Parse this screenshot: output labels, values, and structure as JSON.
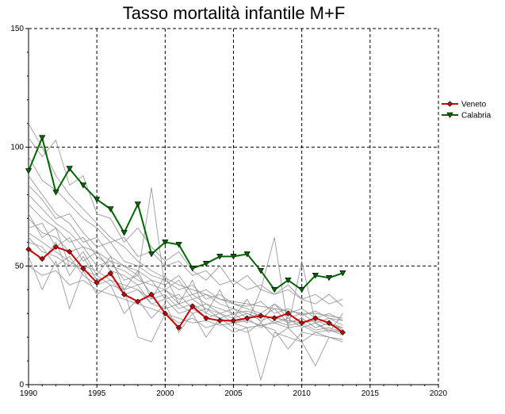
{
  "chart_data": {
    "type": "line",
    "title": "Tasso mortalità infantile M+F",
    "xlabel": "",
    "ylabel": "",
    "xlim": [
      1990,
      2020
    ],
    "ylim": [
      0,
      150
    ],
    "x_ticks": [
      "1990",
      "1995",
      "2000",
      "2005",
      "2010",
      "2015",
      "2020"
    ],
    "y_ticks": [
      "0",
      "50",
      "100",
      "150"
    ],
    "grid": "dashed",
    "legend_position": "right",
    "series": [
      {
        "name": "Veneto",
        "color": "#cc0000",
        "marker": "diamond",
        "x": [
          1990,
          1991,
          1992,
          1993,
          1994,
          1995,
          1996,
          1997,
          1998,
          1999,
          2000,
          2001,
          2002,
          2003,
          2004,
          2005,
          2006,
          2007,
          2008,
          2009,
          2010,
          2011,
          2012,
          2013
        ],
        "values": [
          57,
          53,
          58,
          56,
          49,
          43,
          47,
          38,
          35,
          38,
          30,
          24,
          33,
          28,
          27,
          27,
          28,
          29,
          28,
          30,
          26,
          28,
          26,
          22
        ]
      },
      {
        "name": "Calabria",
        "color": "#006600",
        "marker": "triangle-down",
        "x": [
          1990,
          1991,
          1992,
          1993,
          1994,
          1995,
          1996,
          1997,
          1998,
          1999,
          2000,
          2001,
          2002,
          2003,
          2004,
          2005,
          2006,
          2007,
          2008,
          2009,
          2010,
          2011,
          2012,
          2013
        ],
        "values": [
          90,
          104,
          81,
          91,
          84,
          78,
          74,
          64,
          76,
          55,
          60,
          59,
          49,
          51,
          54,
          54,
          55,
          48,
          40,
          44,
          40,
          46,
          45,
          47
        ]
      }
    ],
    "background_series_color": "#909090",
    "background_series": [
      {
        "x": [
          1990,
          1991,
          1992,
          1993,
          1994,
          1995,
          1996,
          1997,
          1998,
          1999,
          2000,
          2001,
          2002,
          2003,
          2004,
          2005,
          2006,
          2007,
          2008,
          2009,
          2010,
          2011,
          2012,
          2013
        ],
        "values": [
          110,
          100,
          88,
          80,
          74,
          68,
          62,
          58,
          52,
          48,
          45,
          42,
          40,
          38,
          36,
          35,
          34,
          33,
          32,
          31,
          30,
          30,
          29,
          28
        ]
      },
      {
        "x": [
          1990,
          1991,
          1992,
          1993,
          1994,
          1995,
          1996,
          1997,
          1998,
          1999,
          2000,
          2001,
          2002,
          2003,
          2004,
          2005,
          2006,
          2007,
          2008,
          2009,
          2010,
          2011,
          2012,
          2013
        ],
        "values": [
          104,
          96,
          103,
          84,
          88,
          72,
          70,
          60,
          66,
          58,
          52,
          56,
          48,
          44,
          50,
          42,
          46,
          40,
          38,
          42,
          36,
          34,
          38,
          33
        ]
      },
      {
        "x": [
          1990,
          1991,
          1992,
          1993,
          1994,
          1995,
          1996,
          1997,
          1998,
          1999,
          2000,
          2001,
          2002,
          2003,
          2004,
          2005,
          2006,
          2007,
          2008,
          2009,
          2010,
          2011,
          2012,
          2013
        ],
        "values": [
          84,
          78,
          70,
          72,
          64,
          58,
          60,
          52,
          50,
          46,
          44,
          40,
          42,
          36,
          38,
          34,
          33,
          35,
          30,
          32,
          29,
          31,
          28,
          27
        ]
      },
      {
        "x": [
          1990,
          1991,
          1992,
          1993,
          1994,
          1995,
          1996,
          1997,
          1998,
          1999,
          2000,
          2001,
          2002,
          2003,
          2004,
          2005,
          2006,
          2007,
          2008,
          2009,
          2010,
          2011,
          2012,
          2013
        ],
        "values": [
          76,
          70,
          66,
          60,
          62,
          54,
          50,
          48,
          44,
          42,
          40,
          36,
          38,
          34,
          32,
          30,
          31,
          29,
          28,
          27,
          26,
          27,
          25,
          24
        ]
      },
      {
        "x": [
          1990,
          1991,
          1992,
          1993,
          1994,
          1995,
          1996,
          1997,
          1998,
          1999,
          2000,
          2001,
          2002,
          2003,
          2004,
          2005,
          2006,
          2007,
          2008,
          2009,
          2010,
          2011,
          2012,
          2013
        ],
        "values": [
          70,
          64,
          62,
          56,
          58,
          50,
          52,
          44,
          46,
          38,
          40,
          34,
          36,
          32,
          30,
          32,
          28,
          30,
          26,
          28,
          24,
          26,
          23,
          22
        ]
      },
      {
        "x": [
          1990,
          1991,
          1992,
          1993,
          1994,
          1995,
          1996,
          1997,
          1998,
          1999,
          2000,
          2001,
          2002,
          2003,
          2004,
          2005,
          2006,
          2007,
          2008,
          2009,
          2010,
          2011,
          2012,
          2013
        ],
        "values": [
          66,
          68,
          58,
          62,
          52,
          56,
          48,
          46,
          42,
          44,
          36,
          38,
          32,
          34,
          30,
          28,
          30,
          27,
          29,
          26,
          28,
          24,
          26,
          23
        ]
      },
      {
        "x": [
          1990,
          1991,
          1992,
          1993,
          1994,
          1995,
          1996,
          1997,
          1998,
          1999,
          2000,
          2001,
          2002,
          2003,
          2004,
          2005,
          2006,
          2007,
          2008,
          2009,
          2010,
          2011,
          2012,
          2013
        ],
        "values": [
          62,
          56,
          54,
          50,
          50,
          48,
          44,
          42,
          40,
          36,
          38,
          32,
          34,
          30,
          28,
          26,
          27,
          25,
          26,
          24,
          25,
          22,
          23,
          21
        ]
      },
      {
        "x": [
          1990,
          1991,
          1992,
          1993,
          1994,
          1995,
          1996,
          1997,
          1998,
          1999,
          2000,
          2001,
          2002,
          2003,
          2004,
          2005,
          2006,
          2007,
          2008,
          2009,
          2010,
          2011,
          2012,
          2013
        ],
        "values": [
          58,
          52,
          60,
          46,
          54,
          44,
          46,
          40,
          42,
          34,
          36,
          30,
          32,
          28,
          30,
          26,
          28,
          24,
          27,
          25,
          26,
          23,
          24,
          22
        ]
      },
      {
        "x": [
          1990,
          1991,
          1992,
          1993,
          1994,
          1995,
          1996,
          1997,
          1998,
          1999,
          2000,
          2001,
          2002,
          2003,
          2004,
          2005,
          2006,
          2007,
          2008,
          2009,
          2010,
          2011,
          2012,
          2013
        ],
        "values": [
          54,
          40,
          52,
          32,
          48,
          38,
          42,
          30,
          36,
          28,
          34,
          22,
          30,
          20,
          28,
          24,
          22,
          26,
          20,
          24,
          18,
          22,
          20,
          19
        ]
      },
      {
        "x": [
          1990,
          1991,
          1992,
          1993,
          1994,
          1995,
          1996,
          1997,
          1998,
          1999,
          2000,
          2001,
          2002,
          2003,
          2004,
          2005,
          2006,
          2007,
          2008,
          2009,
          2010,
          2011,
          2012,
          2013
        ],
        "values": [
          72,
          62,
          66,
          50,
          56,
          46,
          54,
          40,
          48,
          36,
          46,
          34,
          44,
          30,
          40,
          28,
          36,
          26,
          34,
          30,
          32,
          28,
          30,
          27
        ]
      },
      {
        "x": [
          1990,
          1991,
          1992,
          1993,
          1994,
          1995,
          1996,
          1997,
          1998,
          1999,
          2000,
          2001,
          2002,
          2003,
          2004,
          2005,
          2006,
          2007,
          2008,
          2009,
          2010,
          2011,
          2012,
          2013
        ],
        "values": [
          96,
          86,
          82,
          76,
          70,
          66,
          60,
          62,
          54,
          56,
          50,
          52,
          46,
          48,
          42,
          44,
          40,
          42,
          38,
          40,
          36,
          38,
          34,
          36
        ]
      },
      {
        "x": [
          1990,
          1991,
          1992,
          1993,
          1994,
          1995,
          1996,
          1997,
          1998,
          1999,
          2000,
          2001,
          2002,
          2003,
          2004,
          2005,
          2006,
          2007,
          2008,
          2009,
          2010,
          2011,
          2012,
          2013
        ],
        "values": [
          88,
          80,
          72,
          68,
          60,
          62,
          54,
          50,
          48,
          44,
          42,
          46,
          38,
          40,
          36,
          34,
          32,
          30,
          34,
          28,
          30,
          26,
          28,
          25
        ]
      },
      {
        "x": [
          1990,
          1991,
          1992,
          1993,
          1994,
          1995,
          1996,
          1997,
          1998,
          1999,
          2000,
          2001,
          2002,
          2003,
          2004,
          2005,
          2006,
          2007,
          2008,
          2009,
          2010,
          2011,
          2012,
          2013
        ],
        "values": [
          80,
          74,
          68,
          64,
          58,
          56,
          52,
          50,
          46,
          83,
          40,
          44,
          36,
          38,
          34,
          32,
          30,
          28,
          32,
          26,
          28,
          24,
          26,
          24
        ]
      },
      {
        "x": [
          1990,
          1991,
          1992,
          1993,
          1994,
          1995,
          1996,
          1997,
          1998,
          1999,
          2000,
          2001,
          2002,
          2003,
          2004,
          2005,
          2006,
          2007,
          2008,
          2009,
          2010,
          2011,
          2012,
          2013
        ],
        "values": [
          64,
          60,
          56,
          52,
          48,
          46,
          42,
          40,
          20,
          18,
          30,
          26,
          28,
          24,
          26,
          22,
          24,
          2,
          22,
          20,
          18,
          8,
          20,
          18
        ]
      },
      {
        "x": [
          1990,
          1991,
          1992,
          1993,
          1994,
          1995,
          1996,
          1997,
          1998,
          1999,
          2000,
          2001,
          2002,
          2003,
          2004,
          2005,
          2006,
          2007,
          2008,
          2009,
          2010,
          2011,
          2012,
          2013
        ],
        "values": [
          60,
          58,
          50,
          54,
          46,
          42,
          44,
          38,
          40,
          34,
          32,
          34,
          30,
          32,
          28,
          30,
          26,
          40,
          62,
          24,
          52,
          26,
          22,
          30
        ]
      },
      {
        "x": [
          1990,
          1991,
          1992,
          1993,
          1994,
          1995,
          1996,
          1997,
          1998,
          1999,
          2000,
          2001,
          2002,
          2003,
          2004,
          2005,
          2006,
          2007,
          2008,
          2009,
          2010,
          2011,
          2012,
          2013
        ],
        "values": [
          50,
          46,
          48,
          42,
          44,
          40,
          38,
          36,
          34,
          32,
          30,
          28,
          26,
          27,
          25,
          26,
          24,
          25,
          23,
          15,
          22,
          21,
          20,
          19
        ]
      }
    ]
  }
}
